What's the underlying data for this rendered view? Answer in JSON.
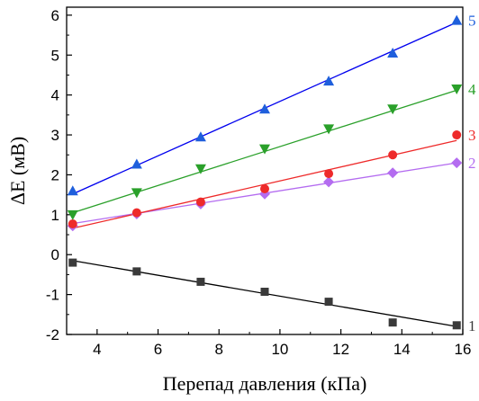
{
  "chart_data": {
    "type": "scatter",
    "xlabel": "Перепад давления (кПа)",
    "ylabel": "ΔE (мВ)",
    "xlim": [
      3,
      16
    ],
    "ylim": [
      -2,
      6.2
    ],
    "xticks": [
      4,
      6,
      8,
      10,
      12,
      14,
      16
    ],
    "yticks": [
      -2,
      -1,
      0,
      1,
      2,
      3,
      4,
      5,
      6
    ],
    "grid": false,
    "legend": "none",
    "series": [
      {
        "name": "1",
        "color": "#3a3a3a",
        "line_color": "#000000",
        "marker": "square",
        "x": [
          3.2,
          5.3,
          7.4,
          9.5,
          11.6,
          13.7,
          15.8
        ],
        "y": [
          -0.2,
          -0.42,
          -0.68,
          -0.93,
          -1.18,
          -1.7,
          -1.77
        ],
        "fit": [
          [
            3.2,
            -0.15
          ],
          [
            15.8,
            -1.8
          ]
        ]
      },
      {
        "name": "2",
        "color": "#b46cf0",
        "line_color": "#b46cf0",
        "marker": "diamond",
        "x": [
          3.2,
          5.3,
          7.4,
          9.5,
          11.6,
          13.7,
          15.8
        ],
        "y": [
          0.72,
          1.02,
          1.27,
          1.52,
          1.82,
          2.05,
          2.3
        ],
        "fit": [
          [
            3.2,
            0.78
          ],
          [
            15.8,
            2.3
          ]
        ]
      },
      {
        "name": "3",
        "color": "#ee2a2a",
        "line_color": "#ee2a2a",
        "marker": "circle",
        "x": [
          3.2,
          5.3,
          7.4,
          9.5,
          11.6,
          13.7,
          15.8
        ],
        "y": [
          0.77,
          1.05,
          1.32,
          1.65,
          2.03,
          2.5,
          3.0
        ],
        "fit": [
          [
            3.2,
            0.66
          ],
          [
            15.8,
            2.86
          ]
        ]
      },
      {
        "name": "4",
        "color": "#2aa02a",
        "line_color": "#2aa02a",
        "marker": "triangle-down",
        "x": [
          3.2,
          5.3,
          7.4,
          9.5,
          11.6,
          13.7,
          15.8
        ],
        "y": [
          1.0,
          1.55,
          2.15,
          2.65,
          3.15,
          3.65,
          4.15
        ],
        "fit": [
          [
            3.2,
            1.05
          ],
          [
            15.8,
            4.12
          ]
        ]
      },
      {
        "name": "5",
        "color": "#1f5fdc",
        "line_color": "#0000ee",
        "marker": "triangle-up",
        "x": [
          3.2,
          5.3,
          7.4,
          9.5,
          11.6,
          13.7,
          15.8
        ],
        "y": [
          1.6,
          2.27,
          2.95,
          3.65,
          4.35,
          5.05,
          5.87
        ],
        "fit": [
          [
            3.2,
            1.52
          ],
          [
            15.8,
            5.82
          ]
        ]
      }
    ]
  }
}
